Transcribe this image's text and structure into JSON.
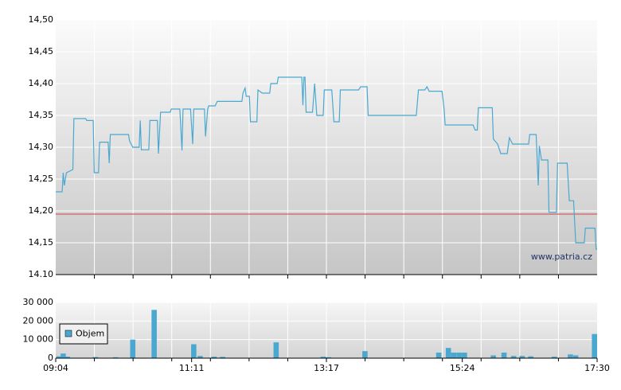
{
  "chart_data": [
    {
      "type": "line",
      "x": [
        "09:04",
        "09:10",
        "09:11",
        "09:12",
        "09:14",
        "09:20",
        "09:21",
        "09:32",
        "09:33",
        "09:39",
        "09:40",
        "09:44",
        "09:45",
        "09:53",
        "09:54",
        "09:55",
        "10:12",
        "10:13",
        "10:16",
        "10:22",
        "10:23",
        "10:24",
        "10:31",
        "10:32",
        "10:39",
        "10:40",
        "10:42",
        "10:51",
        "10:52",
        "11:00",
        "11:02",
        "11:03",
        "11:10",
        "11:12",
        "11:13",
        "11:23",
        "11:24",
        "11:26",
        "11:27",
        "11:33",
        "11:35",
        "11:58",
        "11:59",
        "12:01",
        "12:02",
        "12:05",
        "12:06",
        "12:12",
        "12:13",
        "12:17",
        "12:24",
        "12:25",
        "12:31",
        "12:32",
        "12:54",
        "12:55",
        "12:56",
        "12:57",
        "12:58",
        "13:04",
        "13:06",
        "13:08",
        "13:14",
        "13:15",
        "13:22",
        "13:24",
        "13:29",
        "13:30",
        "13:47",
        "13:49",
        "13:55",
        "13:56",
        "14:41",
        "14:43",
        "14:49",
        "14:51",
        "14:53",
        "15:05",
        "15:07",
        "15:08",
        "15:34",
        "15:36",
        "15:38",
        "15:39",
        "15:52",
        "15:53",
        "15:57",
        "16:00",
        "16:06",
        "16:08",
        "16:11",
        "16:26",
        "16:27",
        "16:33",
        "16:35",
        "16:36",
        "16:38",
        "16:44",
        "16:45",
        "16:52",
        "16:53",
        "17:02",
        "17:04",
        "17:08",
        "17:10",
        "17:18",
        "17:19",
        "17:28",
        "17:29",
        "17:30"
      ],
      "values": [
        14.23,
        14.23,
        14.26,
        14.24,
        14.26,
        14.265,
        14.345,
        14.345,
        14.342,
        14.342,
        14.26,
        14.26,
        14.308,
        14.308,
        14.275,
        14.32,
        14.32,
        14.31,
        14.3,
        14.3,
        14.342,
        14.296,
        14.296,
        14.342,
        14.342,
        14.29,
        14.355,
        14.355,
        14.36,
        14.36,
        14.295,
        14.36,
        14.36,
        14.305,
        14.36,
        14.36,
        14.317,
        14.36,
        14.365,
        14.365,
        14.372,
        14.372,
        14.385,
        14.393,
        14.38,
        14.38,
        14.34,
        14.34,
        14.39,
        14.385,
        14.385,
        14.4,
        14.4,
        14.41,
        14.41,
        14.366,
        14.41,
        14.41,
        14.355,
        14.355,
        14.4,
        14.35,
        14.35,
        14.39,
        14.39,
        14.34,
        14.34,
        14.39,
        14.39,
        14.395,
        14.395,
        14.35,
        14.35,
        14.39,
        14.39,
        14.395,
        14.388,
        14.388,
        14.36,
        14.335,
        14.335,
        14.327,
        14.327,
        14.362,
        14.362,
        14.313,
        14.305,
        14.29,
        14.29,
        14.315,
        14.305,
        14.305,
        14.32,
        14.32,
        14.24,
        14.302,
        14.28,
        14.28,
        14.198,
        14.198,
        14.275,
        14.275,
        14.216,
        14.216,
        14.15,
        14.15,
        14.173,
        14.173,
        14.14,
        14.14
      ],
      "color": "#4aa8d0",
      "xlim": [
        "09:04",
        "17:30"
      ],
      "ylim": [
        14.1,
        14.5
      ],
      "yticks": [
        {
          "value": 14.1,
          "label": "14.10"
        },
        {
          "value": 14.15,
          "label": "14,15"
        },
        {
          "value": 14.2,
          "label": "14,20"
        },
        {
          "value": 14.25,
          "label": "14,25"
        },
        {
          "value": 14.3,
          "label": "14,30"
        },
        {
          "value": 14.35,
          "label": "14,35"
        },
        {
          "value": 14.4,
          "label": "14,40"
        },
        {
          "value": 14.45,
          "label": "14,45"
        },
        {
          "value": 14.5,
          "label": "14,50"
        }
      ],
      "reference_line": {
        "value": 14.195,
        "color": "#d04040"
      },
      "watermark": "www.patria.cz",
      "grid": true
    },
    {
      "type": "bar",
      "xlim": [
        "09:04",
        "17:30"
      ],
      "xticks": [
        "09:04",
        "11:11",
        "13:17",
        "15:24",
        "17:30"
      ],
      "ylim": [
        0,
        30000
      ],
      "yticks": [
        {
          "value": 0,
          "label": "0"
        },
        {
          "value": 10000,
          "label": "10 000"
        },
        {
          "value": 20000,
          "label": "20 000"
        },
        {
          "value": 30000,
          "label": "30 000"
        }
      ],
      "legend": "top-left",
      "grid": true,
      "series": [
        {
          "name": "Objem",
          "color": "#4aa8d0",
          "x": [
            "09:07",
            "09:11",
            "09:15",
            "09:41",
            "10:00",
            "10:16",
            "10:36",
            "11:13",
            "11:19",
            "11:32",
            "11:40",
            "12:30",
            "13:14",
            "13:19",
            "13:53",
            "15:02",
            "15:11",
            "15:16",
            "15:21",
            "15:26",
            "15:53",
            "16:03",
            "16:12",
            "16:20",
            "16:28",
            "16:50",
            "17:05",
            "17:10",
            "17:30"
          ],
          "values": [
            1000,
            2500,
            800,
            600,
            500,
            10000,
            26000,
            7500,
            1200,
            800,
            700,
            8500,
            800,
            500,
            3800,
            3000,
            5500,
            3000,
            3000,
            3000,
            1500,
            3000,
            1200,
            1200,
            1000,
            800,
            2000,
            1500,
            13000
          ]
        }
      ]
    }
  ]
}
